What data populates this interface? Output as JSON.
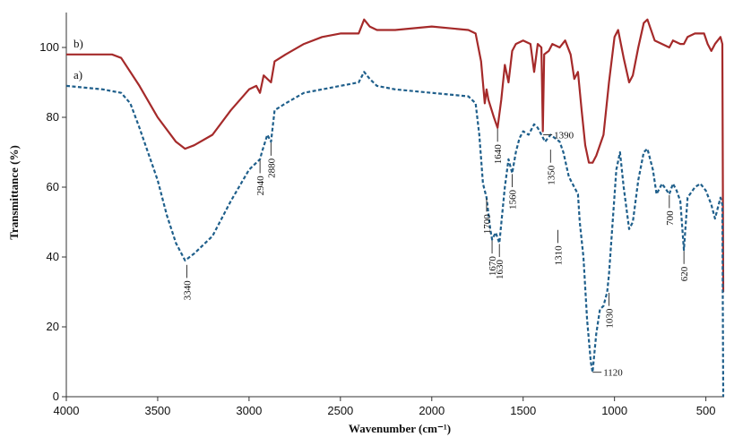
{
  "chart_data": {
    "type": "line",
    "xlabel": "Wavenumber (cm⁻¹)",
    "ylabel": "Transmittance (%)",
    "xlim": [
      4000,
      400
    ],
    "x_reversed": true,
    "ylim": [
      0,
      110
    ],
    "x_ticks": [
      "4000",
      "3500",
      "3000",
      "2500",
      "2000",
      "1500",
      "1000",
      "500"
    ],
    "x_tick_values": [
      4000,
      3500,
      3000,
      2500,
      2000,
      1500,
      1000,
      500
    ],
    "y_ticks": [
      "0",
      "20",
      "40",
      "60",
      "80",
      "100"
    ],
    "y_tick_values": [
      0,
      20,
      40,
      60,
      80,
      100
    ],
    "grid": false,
    "series": [
      {
        "label": "b)",
        "color": "#a52a2a",
        "style": "solid",
        "points": [
          [
            4000,
            98
          ],
          [
            3750,
            98
          ],
          [
            3700,
            97
          ],
          [
            3600,
            89
          ],
          [
            3500,
            80
          ],
          [
            3400,
            73
          ],
          [
            3350,
            71
          ],
          [
            3300,
            72
          ],
          [
            3200,
            75
          ],
          [
            3100,
            82
          ],
          [
            3000,
            88
          ],
          [
            2960,
            89
          ],
          [
            2940,
            87
          ],
          [
            2920,
            92
          ],
          [
            2880,
            90
          ],
          [
            2860,
            96
          ],
          [
            2800,
            98
          ],
          [
            2700,
            101
          ],
          [
            2600,
            103
          ],
          [
            2500,
            104
          ],
          [
            2400,
            104
          ],
          [
            2370,
            108
          ],
          [
            2340,
            106
          ],
          [
            2300,
            105
          ],
          [
            2200,
            105
          ],
          [
            2000,
            106
          ],
          [
            1800,
            105
          ],
          [
            1760,
            104
          ],
          [
            1730,
            96
          ],
          [
            1710,
            84
          ],
          [
            1700,
            88
          ],
          [
            1690,
            85
          ],
          [
            1660,
            80
          ],
          [
            1640,
            77
          ],
          [
            1620,
            85
          ],
          [
            1600,
            95
          ],
          [
            1580,
            90
          ],
          [
            1560,
            99
          ],
          [
            1540,
            101
          ],
          [
            1500,
            102
          ],
          [
            1460,
            101
          ],
          [
            1440,
            93
          ],
          [
            1420,
            101
          ],
          [
            1400,
            100
          ],
          [
            1392,
            76
          ],
          [
            1385,
            98
          ],
          [
            1360,
            99
          ],
          [
            1340,
            101
          ],
          [
            1300,
            100
          ],
          [
            1270,
            102
          ],
          [
            1240,
            98
          ],
          [
            1220,
            91
          ],
          [
            1200,
            93
          ],
          [
            1180,
            82
          ],
          [
            1160,
            72
          ],
          [
            1140,
            67
          ],
          [
            1120,
            67
          ],
          [
            1100,
            69
          ],
          [
            1060,
            75
          ],
          [
            1030,
            90
          ],
          [
            1000,
            103
          ],
          [
            980,
            105
          ],
          [
            950,
            97
          ],
          [
            920,
            90
          ],
          [
            900,
            92
          ],
          [
            870,
            100
          ],
          [
            840,
            107
          ],
          [
            820,
            108
          ],
          [
            780,
            102
          ],
          [
            740,
            101
          ],
          [
            700,
            100
          ],
          [
            680,
            102
          ],
          [
            640,
            101
          ],
          [
            620,
            101
          ],
          [
            600,
            103
          ],
          [
            560,
            104
          ],
          [
            510,
            104
          ],
          [
            490,
            101
          ],
          [
            470,
            99
          ],
          [
            450,
            101
          ],
          [
            420,
            103
          ],
          [
            410,
            101
          ],
          [
            405,
            30
          ]
        ]
      },
      {
        "label": "a)",
        "color": "#1f5f8b",
        "style": "dashed",
        "points": [
          [
            4000,
            89
          ],
          [
            3800,
            88
          ],
          [
            3700,
            87
          ],
          [
            3650,
            84
          ],
          [
            3600,
            77
          ],
          [
            3500,
            62
          ],
          [
            3450,
            52
          ],
          [
            3400,
            44
          ],
          [
            3350,
            39
          ],
          [
            3300,
            41
          ],
          [
            3200,
            46
          ],
          [
            3100,
            56
          ],
          [
            3000,
            65
          ],
          [
            2960,
            67
          ],
          [
            2940,
            68
          ],
          [
            2930,
            70
          ],
          [
            2900,
            75
          ],
          [
            2880,
            73
          ],
          [
            2860,
            82
          ],
          [
            2800,
            84
          ],
          [
            2700,
            87
          ],
          [
            2600,
            88
          ],
          [
            2500,
            89
          ],
          [
            2400,
            90
          ],
          [
            2370,
            93
          ],
          [
            2340,
            91
          ],
          [
            2300,
            89
          ],
          [
            2200,
            88
          ],
          [
            2000,
            87
          ],
          [
            1800,
            86
          ],
          [
            1760,
            84
          ],
          [
            1740,
            75
          ],
          [
            1720,
            61
          ],
          [
            1700,
            57
          ],
          [
            1680,
            48
          ],
          [
            1670,
            45
          ],
          [
            1650,
            47
          ],
          [
            1630,
            44
          ],
          [
            1600,
            60
          ],
          [
            1580,
            68
          ],
          [
            1560,
            64
          ],
          [
            1540,
            70
          ],
          [
            1520,
            74
          ],
          [
            1500,
            76
          ],
          [
            1470,
            75
          ],
          [
            1440,
            78
          ],
          [
            1420,
            77
          ],
          [
            1400,
            75
          ],
          [
            1380,
            73
          ],
          [
            1350,
            75
          ],
          [
            1300,
            73
          ],
          [
            1280,
            70
          ],
          [
            1250,
            63
          ],
          [
            1220,
            60
          ],
          [
            1200,
            58
          ],
          [
            1190,
            50
          ],
          [
            1170,
            40
          ],
          [
            1150,
            22
          ],
          [
            1130,
            10
          ],
          [
            1120,
            7
          ],
          [
            1100,
            18
          ],
          [
            1080,
            25
          ],
          [
            1060,
            26
          ],
          [
            1040,
            30
          ],
          [
            1030,
            35
          ],
          [
            1010,
            50
          ],
          [
            990,
            65
          ],
          [
            970,
            70
          ],
          [
            950,
            60
          ],
          [
            920,
            48
          ],
          [
            900,
            50
          ],
          [
            870,
            62
          ],
          [
            840,
            70
          ],
          [
            820,
            71
          ],
          [
            790,
            65
          ],
          [
            770,
            58
          ],
          [
            740,
            61
          ],
          [
            700,
            58
          ],
          [
            680,
            61
          ],
          [
            660,
            59
          ],
          [
            640,
            56
          ],
          [
            620,
            42
          ],
          [
            600,
            57
          ],
          [
            560,
            60
          ],
          [
            530,
            61
          ],
          [
            500,
            59
          ],
          [
            470,
            55
          ],
          [
            450,
            51
          ],
          [
            430,
            55
          ],
          [
            420,
            57
          ],
          [
            410,
            55
          ],
          [
            405,
            0
          ]
        ]
      }
    ],
    "annotations": [
      {
        "text": "3340",
        "x": 3340,
        "tick_y": 38,
        "label_y": 34,
        "rotate": true
      },
      {
        "text": "2940",
        "x": 2940,
        "tick_y": 68,
        "label_y": 64,
        "rotate": true
      },
      {
        "text": "2880",
        "x": 2880,
        "tick_y": 73,
        "label_y": 69,
        "rotate": true
      },
      {
        "text": "1700",
        "x": 1700,
        "tick_y": 57,
        "label_y": 53,
        "rotate": true
      },
      {
        "text": "1670",
        "x": 1670,
        "tick_y": 45,
        "label_y": 41,
        "rotate": true
      },
      {
        "text": "1630",
        "x": 1630,
        "tick_y": 44,
        "label_y": 40,
        "rotate": true
      },
      {
        "text": "1640",
        "x": 1640,
        "tick_y": 77,
        "label_y": 73,
        "rotate": true
      },
      {
        "text": "1560",
        "x": 1560,
        "tick_y": 64,
        "label_y": 60,
        "rotate": true
      },
      {
        "text": "1390",
        "x": 1390,
        "tick_y": 75,
        "label_y": 75,
        "rotate": false
      },
      {
        "text": "1350",
        "x": 1350,
        "tick_y": 71,
        "label_y": 67,
        "rotate": true
      },
      {
        "text": "1310",
        "x": 1310,
        "tick_y": 48,
        "label_y": 44,
        "rotate": true
      },
      {
        "text": "1120",
        "x": 1120,
        "tick_y": 7,
        "label_y": 7,
        "rotate": false
      },
      {
        "text": "1030",
        "x": 1030,
        "tick_y": 30,
        "label_y": 26,
        "rotate": true
      },
      {
        "text": "700",
        "x": 700,
        "tick_y": 58,
        "label_y": 54,
        "rotate": true
      },
      {
        "text": "620",
        "x": 620,
        "tick_y": 42,
        "label_y": 38,
        "rotate": true
      }
    ]
  }
}
